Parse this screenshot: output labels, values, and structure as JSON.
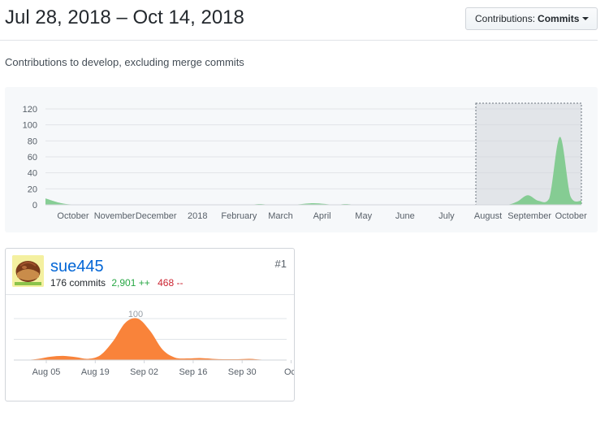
{
  "header": {
    "range": "Jul 28, 2018 – Oct 14, 2018",
    "filter_label": "Contributions:",
    "filter_value": "Commits"
  },
  "subtitle": "Contributions to develop, excluding merge commits",
  "colors": {
    "overview_area": "#7bc98a",
    "user_area": "#f9833a",
    "link": "#0366d6",
    "additions": "#28a745",
    "deletions": "#cb2431"
  },
  "chart_data": [
    {
      "type": "area",
      "y_ticks": [
        "0",
        "20",
        "40",
        "60",
        "80",
        "100",
        "120"
      ],
      "ylim": [
        0,
        120
      ],
      "x_ticks": [
        "October",
        "November",
        "December",
        "2018",
        "February",
        "March",
        "April",
        "May",
        "June",
        "July",
        "August",
        "September",
        "October"
      ],
      "grid": true,
      "selection_brush": [
        "August",
        "October"
      ],
      "series": [
        {
          "x": [
            0,
            0.03,
            0.06,
            0.1,
            0.14,
            0.18,
            0.22,
            0.26,
            0.3,
            0.34,
            0.38,
            0.4,
            0.42,
            0.46,
            0.5,
            0.54,
            0.56,
            0.58,
            0.62,
            0.66,
            0.7,
            0.74,
            0.76,
            0.78,
            0.82,
            0.86,
            0.88,
            0.9,
            0.92,
            0.94,
            0.96,
            0.98,
            1.0
          ],
          "values": [
            8,
            2,
            0,
            0,
            0,
            0,
            0,
            0,
            0,
            0,
            0,
            1,
            0,
            0,
            2,
            0,
            1,
            0,
            0,
            0,
            0,
            0,
            0,
            0,
            0,
            0,
            4,
            12,
            5,
            8,
            85,
            10,
            5
          ]
        }
      ]
    },
    {
      "type": "area",
      "y_ticks": [
        "100"
      ],
      "x_ticks": [
        "Aug 05",
        "Aug 19",
        "Sep 02",
        "Sep 16",
        "Sep 30",
        "Oct"
      ],
      "grid": true,
      "series": [
        {
          "name": "sue445",
          "x": [
            0,
            0.05,
            0.1,
            0.15,
            0.2,
            0.25,
            0.3,
            0.35,
            0.4,
            0.45,
            0.5,
            0.55,
            0.6,
            0.65,
            0.7,
            0.75,
            0.8,
            0.85,
            0.9,
            0.95,
            1.0
          ],
          "values": [
            0,
            3,
            8,
            10,
            7,
            3,
            12,
            45,
            90,
            100,
            70,
            25,
            6,
            4,
            5,
            3,
            2,
            2,
            3,
            1,
            0
          ]
        }
      ]
    }
  ],
  "contributor": {
    "username": "sue445",
    "commits": "176 commits",
    "additions": "2,901 ++",
    "deletions": "468 --",
    "rank": "#1",
    "avatar_icon": "chestnut-avatar-icon"
  }
}
